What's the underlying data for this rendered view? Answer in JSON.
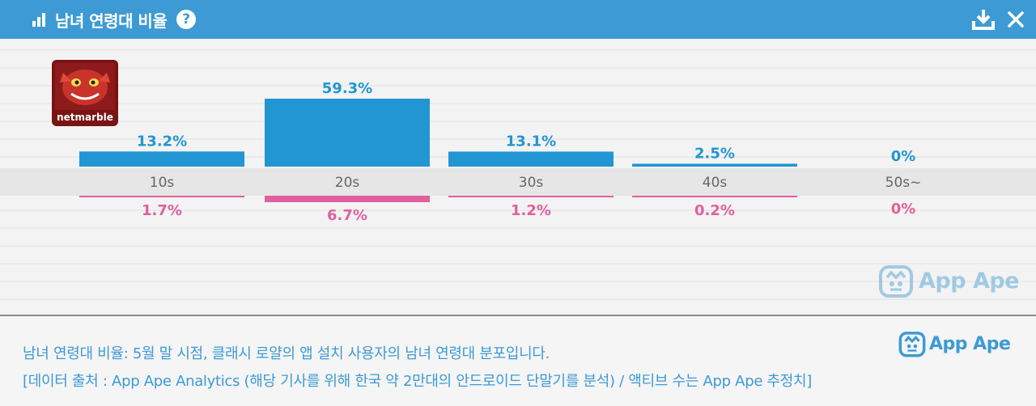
{
  "header": {
    "title": "남녀 연령대 비율",
    "help_label": "?",
    "icons": [
      "bar-chart-icon",
      "help-icon",
      "download-icon",
      "close-icon"
    ]
  },
  "app": {
    "brand": "netmarble"
  },
  "watermark": {
    "text": "App Ape"
  },
  "chart_data": {
    "type": "bar",
    "categories": [
      "10s",
      "20s",
      "30s",
      "40s",
      "50s~"
    ],
    "series": [
      {
        "values": [
          13.2,
          59.3,
          13.1,
          2.5,
          0
        ],
        "labels": [
          "13.2%",
          "59.3%",
          "13.1%",
          "2.5%",
          "0%"
        ],
        "color": "#2196d3",
        "direction": "up"
      },
      {
        "values": [
          1.7,
          6.7,
          1.2,
          0.2,
          0
        ],
        "labels": [
          "1.7%",
          "6.7%",
          "1.2%",
          "0.2%",
          "0%"
        ],
        "color": "#e0609e",
        "direction": "down"
      }
    ],
    "grid": true
  },
  "footer": {
    "line1": "남녀 연령대 비율: 5월 말 시점, 클래시 로얄의 앱 설치 사용자의 남녀 연령대 분포입니다.",
    "line2": "[데이터 출처 : App Ape Analytics (해당 기사를 위해 한국 약 2만대의 안드로이드 단말기를 분석) / 액티브 수는 App Ape 추정치]"
  }
}
